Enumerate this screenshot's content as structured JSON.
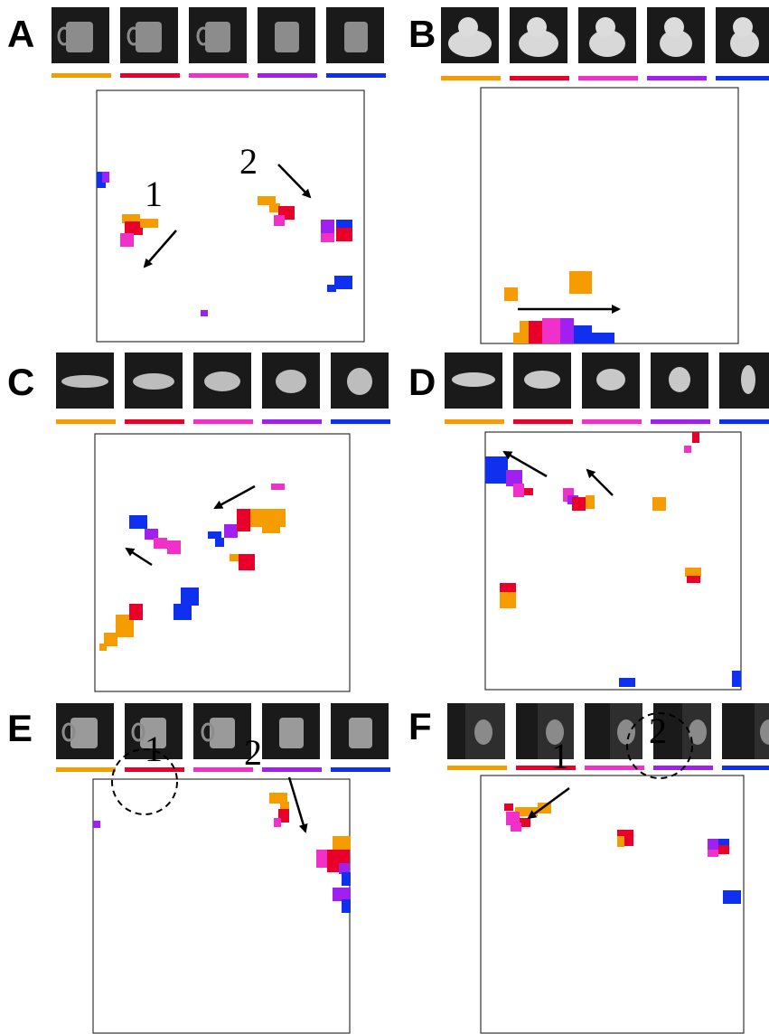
{
  "panels": [
    {
      "letter": "A",
      "labels": [
        "1",
        "2"
      ]
    },
    {
      "letter": "B"
    },
    {
      "letter": "C"
    },
    {
      "letter": "D"
    },
    {
      "letter": "E",
      "labels": [
        "1",
        "2"
      ]
    },
    {
      "letter": "F",
      "labels": [
        "1",
        "2"
      ]
    }
  ]
}
